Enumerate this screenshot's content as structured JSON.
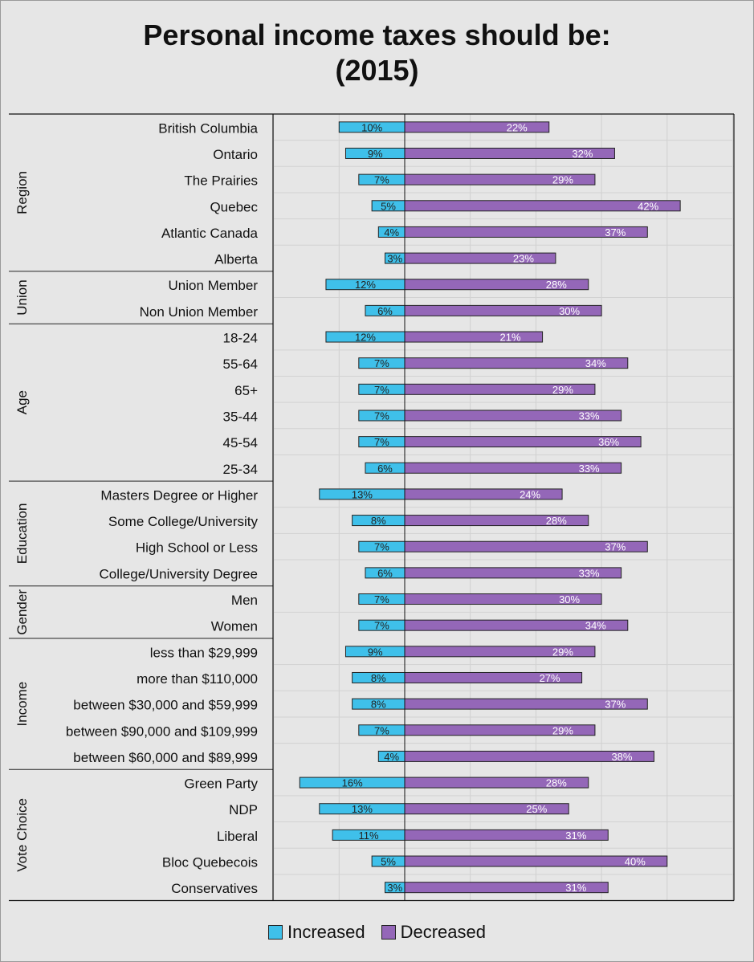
{
  "colors": {
    "increased": "#3fc0ea",
    "decreased": "#9467b8"
  },
  "chart_data": {
    "type": "bar",
    "orientation": "horizontal-diverging",
    "title": "Personal income taxes should be:",
    "subtitle": "(2015)",
    "xlim": [
      -20,
      50
    ],
    "grid": true,
    "legend_position": "bottom",
    "series": [
      {
        "name": "Increased",
        "key": "increased"
      },
      {
        "name": "Decreased",
        "key": "decreased"
      }
    ],
    "groups": [
      {
        "name": "Region",
        "rows": [
          {
            "label": "British Columbia",
            "increased": 10,
            "decreased": 22
          },
          {
            "label": "Ontario",
            "increased": 9,
            "decreased": 32
          },
          {
            "label": "The Prairies",
            "increased": 7,
            "decreased": 29
          },
          {
            "label": "Quebec",
            "increased": 5,
            "decreased": 42
          },
          {
            "label": "Atlantic Canada",
            "increased": 4,
            "decreased": 37
          },
          {
            "label": "Alberta",
            "increased": 3,
            "decreased": 23
          }
        ]
      },
      {
        "name": "Union",
        "rows": [
          {
            "label": "Union Member",
            "increased": 12,
            "decreased": 28
          },
          {
            "label": "Non Union Member",
            "increased": 6,
            "decreased": 30
          }
        ]
      },
      {
        "name": "Age",
        "rows": [
          {
            "label": "18-24",
            "increased": 12,
            "decreased": 21
          },
          {
            "label": "55-64",
            "increased": 7,
            "decreased": 34
          },
          {
            "label": "65+",
            "increased": 7,
            "decreased": 29
          },
          {
            "label": "35-44",
            "increased": 7,
            "decreased": 33
          },
          {
            "label": "45-54",
            "increased": 7,
            "decreased": 36
          },
          {
            "label": "25-34",
            "increased": 6,
            "decreased": 33
          }
        ]
      },
      {
        "name": "Education",
        "rows": [
          {
            "label": "Masters Degree or Higher",
            "increased": 13,
            "decreased": 24
          },
          {
            "label": "Some College/University",
            "increased": 8,
            "decreased": 28
          },
          {
            "label": "High School or Less",
            "increased": 7,
            "decreased": 37
          },
          {
            "label": "College/University Degree",
            "increased": 6,
            "decreased": 33
          }
        ]
      },
      {
        "name": "Gender",
        "rows": [
          {
            "label": "Men",
            "increased": 7,
            "decreased": 30
          },
          {
            "label": "Women",
            "increased": 7,
            "decreased": 34
          }
        ]
      },
      {
        "name": "Income",
        "rows": [
          {
            "label": "less than $29,999",
            "increased": 9,
            "decreased": 29
          },
          {
            "label": "more than $110,000",
            "increased": 8,
            "decreased": 27
          },
          {
            "label": "between $30,000 and $59,999",
            "increased": 8,
            "decreased": 37
          },
          {
            "label": "between $90,000 and $109,999",
            "increased": 7,
            "decreased": 29
          },
          {
            "label": "between $60,000 and $89,999",
            "increased": 4,
            "decreased": 38
          }
        ]
      },
      {
        "name": "Vote Choice",
        "rows": [
          {
            "label": "Green Party",
            "increased": 16,
            "decreased": 28
          },
          {
            "label": "NDP",
            "increased": 13,
            "decreased": 25
          },
          {
            "label": "Liberal",
            "increased": 11,
            "decreased": 31
          },
          {
            "label": "Bloc Quebecois",
            "increased": 5,
            "decreased": 40
          },
          {
            "label": "Conservatives",
            "increased": 3,
            "decreased": 31
          }
        ]
      }
    ]
  }
}
